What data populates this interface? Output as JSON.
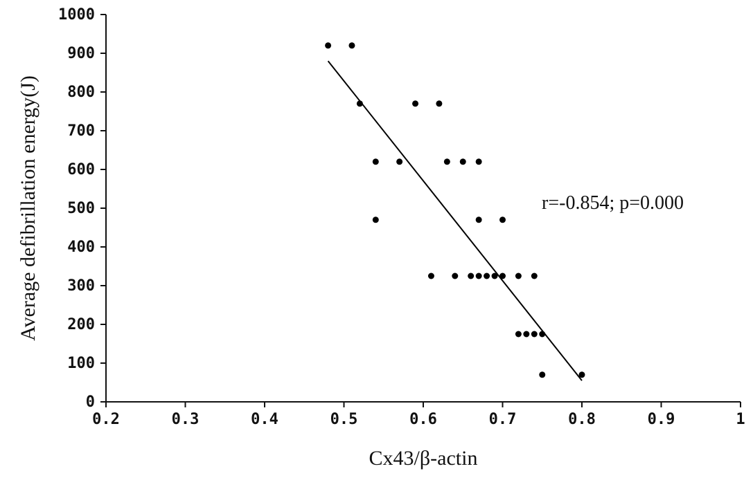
{
  "chart_data": {
    "type": "scatter",
    "title": "",
    "xlabel": "Cx43/β-actin",
    "ylabel": "Average defibrillation energy(J)",
    "xlim": [
      0.2,
      1.0
    ],
    "ylim": [
      0,
      1000
    ],
    "x_ticks": [
      0.2,
      0.3,
      0.4,
      0.5,
      0.6,
      0.7,
      0.8,
      0.9,
      1.0
    ],
    "x_tick_labels": [
      "0.2",
      "0.3",
      "0.4",
      "0.5",
      "0.6",
      "0.7",
      "0.8",
      "0.9",
      "1"
    ],
    "y_ticks": [
      0,
      100,
      200,
      300,
      400,
      500,
      600,
      700,
      800,
      900,
      1000
    ],
    "y_tick_labels": [
      "0",
      "100",
      "200",
      "300",
      "400",
      "500",
      "600",
      "700",
      "800",
      "900",
      "1000"
    ],
    "grid": false,
    "points": [
      {
        "x": 0.48,
        "y": 920
      },
      {
        "x": 0.51,
        "y": 920
      },
      {
        "x": 0.52,
        "y": 770
      },
      {
        "x": 0.59,
        "y": 770
      },
      {
        "x": 0.62,
        "y": 770
      },
      {
        "x": 0.54,
        "y": 620
      },
      {
        "x": 0.57,
        "y": 620
      },
      {
        "x": 0.63,
        "y": 620
      },
      {
        "x": 0.65,
        "y": 620
      },
      {
        "x": 0.67,
        "y": 620
      },
      {
        "x": 0.54,
        "y": 470
      },
      {
        "x": 0.67,
        "y": 470
      },
      {
        "x": 0.7,
        "y": 470
      },
      {
        "x": 0.61,
        "y": 325
      },
      {
        "x": 0.64,
        "y": 325
      },
      {
        "x": 0.66,
        "y": 325
      },
      {
        "x": 0.67,
        "y": 325
      },
      {
        "x": 0.68,
        "y": 325
      },
      {
        "x": 0.69,
        "y": 325
      },
      {
        "x": 0.7,
        "y": 325
      },
      {
        "x": 0.72,
        "y": 325
      },
      {
        "x": 0.74,
        "y": 325
      },
      {
        "x": 0.72,
        "y": 175
      },
      {
        "x": 0.73,
        "y": 175
      },
      {
        "x": 0.74,
        "y": 175
      },
      {
        "x": 0.75,
        "y": 175
      },
      {
        "x": 0.75,
        "y": 70
      },
      {
        "x": 0.8,
        "y": 70
      }
    ],
    "trendline": {
      "x": [
        0.48,
        0.8
      ],
      "y": [
        880,
        55
      ]
    },
    "annotation": "r=-0.854; p=0.000",
    "marker_color": "#000000",
    "line_color": "#000000"
  }
}
